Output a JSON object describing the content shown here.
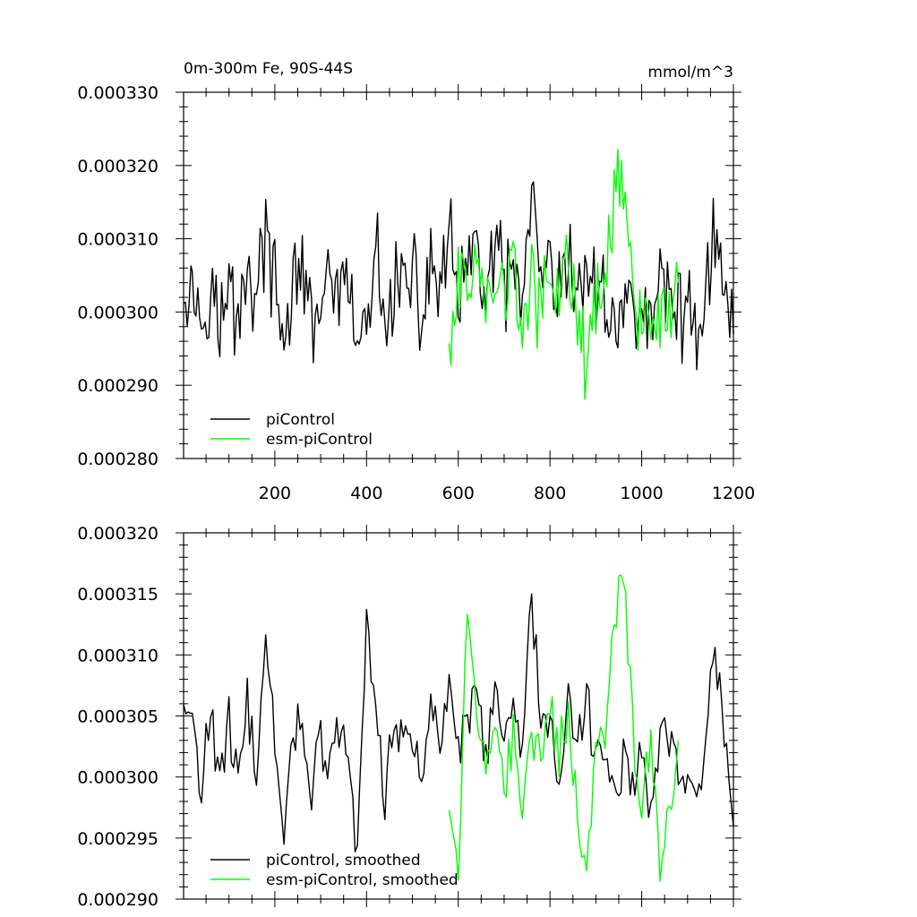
{
  "chart_data": [
    {
      "type": "line",
      "title_left": "0m-300m Fe, 90S-44S",
      "title_right": "mmol/m^3",
      "xlabel": "",
      "ylabel": "",
      "xlim": [
        1,
        1200
      ],
      "ylim": [
        0.00028,
        0.00033
      ],
      "x_ticks": [
        200,
        400,
        600,
        800,
        1000,
        1200
      ],
      "x_tick_labels": [
        "200",
        "400",
        "600",
        "800",
        "1000",
        "1200"
      ],
      "y_ticks": [
        0.00028,
        0.00029,
        0.0003,
        0.00031,
        0.00032,
        0.00033
      ],
      "y_tick_labels": [
        "0.000280",
        "0.000290",
        "0.000300",
        "0.000310",
        "0.000320",
        "0.000330"
      ],
      "legend_position": "bottom-left",
      "series": [
        {
          "name": "piControl",
          "color": "#000000",
          "x": [
            1,
            20,
            40,
            60,
            80,
            100,
            120,
            140,
            160,
            180,
            200,
            220,
            240,
            260,
            280,
            300,
            320,
            340,
            360,
            380,
            400,
            420,
            440,
            460,
            480,
            500,
            520,
            540,
            560,
            580,
            600,
            620,
            640,
            660,
            680,
            700,
            720,
            740,
            760,
            780,
            800,
            820,
            840,
            860,
            880,
            900,
            920,
            940,
            960,
            980,
            1000,
            1020,
            1040,
            1060,
            1080,
            1100,
            1120,
            1140,
            1160,
            1180,
            1200
          ],
          "values": [
            0.000306,
            0.000304,
            0.000299,
            0.000306,
            0.000297,
            0.000303,
            0.000299,
            0.000307,
            0.000301,
            0.000312,
            0.000302,
            0.000294,
            0.000306,
            0.000304,
            0.000298,
            0.000303,
            0.000301,
            0.000304,
            0.000301,
            0.000296,
            0.000297,
            0.000308,
            0.000297,
            0.000305,
            0.000303,
            0.000304,
            0.000299,
            0.000307,
            0.000303,
            0.000309,
            0.000303,
            0.000304,
            0.000309,
            0.000302,
            0.000308,
            0.000303,
            0.000305,
            0.000302,
            0.000314,
            0.000303,
            0.000305,
            0.000301,
            0.000306,
            0.000302,
            0.000307,
            0.000301,
            0.000303,
            0.000298,
            0.000302,
            0.000299,
            0.000302,
            0.000297,
            0.000304,
            0.000303,
            0.000301,
            0.000299,
            0.000298,
            0.000304,
            0.000311,
            0.000302,
            0.000297
          ]
        },
        {
          "name": "esm-piControl",
          "color": "#00ff00",
          "x": [
            580,
            600,
            620,
            640,
            660,
            680,
            700,
            720,
            740,
            760,
            780,
            800,
            820,
            840,
            860,
            880,
            900,
            920,
            940,
            960,
            980,
            1000,
            1020,
            1040,
            1060,
            1080
          ],
          "values": [
            0.000297,
            0.000301,
            0.000305,
            0.000309,
            0.000299,
            0.000306,
            0.000302,
            0.000305,
            0.000298,
            0.000304,
            0.000301,
            0.000306,
            0.000302,
            0.000305,
            0.000297,
            0.000293,
            0.000303,
            0.000304,
            0.000316,
            0.000319,
            0.000304,
            0.000298,
            0.000303,
            0.000296,
            0.000298,
            0.000304
          ]
        }
      ]
    },
    {
      "type": "line",
      "title_left": "",
      "title_right": "",
      "xlabel": "",
      "ylabel": "",
      "xlim": [
        1,
        1200
      ],
      "ylim": [
        0.00029,
        0.00032
      ],
      "x_ticks": [
        200,
        400,
        600,
        800,
        1000,
        1200
      ],
      "x_tick_labels": [],
      "y_ticks": [
        0.00029,
        0.000295,
        0.0003,
        0.000305,
        0.00031,
        0.000315,
        0.00032
      ],
      "y_tick_labels": [
        "0.000290",
        "0.000295",
        "0.000300",
        "0.000305",
        "0.000310",
        "0.000315",
        "0.000320"
      ],
      "legend_position": "bottom-left",
      "series": [
        {
          "name": "piControl, smoothed",
          "color": "#000000",
          "x": [
            1,
            20,
            40,
            60,
            80,
            100,
            120,
            140,
            160,
            180,
            200,
            220,
            240,
            260,
            280,
            300,
            320,
            340,
            360,
            380,
            400,
            420,
            440,
            460,
            480,
            500,
            520,
            540,
            560,
            580,
            600,
            620,
            640,
            660,
            680,
            700,
            720,
            740,
            760,
            780,
            800,
            820,
            840,
            860,
            880,
            900,
            920,
            940,
            960,
            980,
            1000,
            1020,
            1040,
            1060,
            1080,
            1100,
            1120,
            1140,
            1160,
            1180,
            1200
          ],
          "values": [
            0.000306,
            0.000304,
            0.000299,
            0.000306,
            0.000299,
            0.000304,
            0.0003,
            0.000306,
            0.000301,
            0.000312,
            0.000302,
            0.000294,
            0.000305,
            0.000304,
            0.000299,
            0.000303,
            0.000301,
            0.000304,
            0.000301,
            0.000294,
            0.000312,
            0.000306,
            0.000298,
            0.000305,
            0.000303,
            0.000304,
            0.000299,
            0.000306,
            0.000303,
            0.000309,
            0.000303,
            0.000304,
            0.000308,
            0.000302,
            0.000307,
            0.000303,
            0.000305,
            0.000302,
            0.000316,
            0.000303,
            0.000305,
            0.000301,
            0.000306,
            0.000302,
            0.000307,
            0.000301,
            0.000303,
            0.000298,
            0.000302,
            0.000299,
            0.000302,
            0.000297,
            0.000304,
            0.000303,
            0.000301,
            0.000299,
            0.000298,
            0.000304,
            0.000311,
            0.000302,
            0.000296
          ]
        },
        {
          "name": "esm-piControl, smoothed",
          "color": "#00ff00",
          "x": [
            580,
            600,
            620,
            640,
            660,
            680,
            700,
            720,
            740,
            760,
            780,
            800,
            820,
            840,
            860,
            880,
            900,
            920,
            940,
            960,
            980,
            1000,
            1020,
            1040,
            1060,
            1080
          ],
          "values": [
            0.000298,
            0.000293,
            0.000314,
            0.000303,
            0.000301,
            0.000306,
            0.000299,
            0.000304,
            0.000298,
            0.000303,
            0.000301,
            0.000306,
            0.000302,
            0.000305,
            0.000297,
            0.000292,
            0.000303,
            0.000304,
            0.000312,
            0.000317,
            0.000304,
            0.000298,
            0.000303,
            0.000293,
            0.000297,
            0.000303
          ]
        }
      ]
    }
  ]
}
